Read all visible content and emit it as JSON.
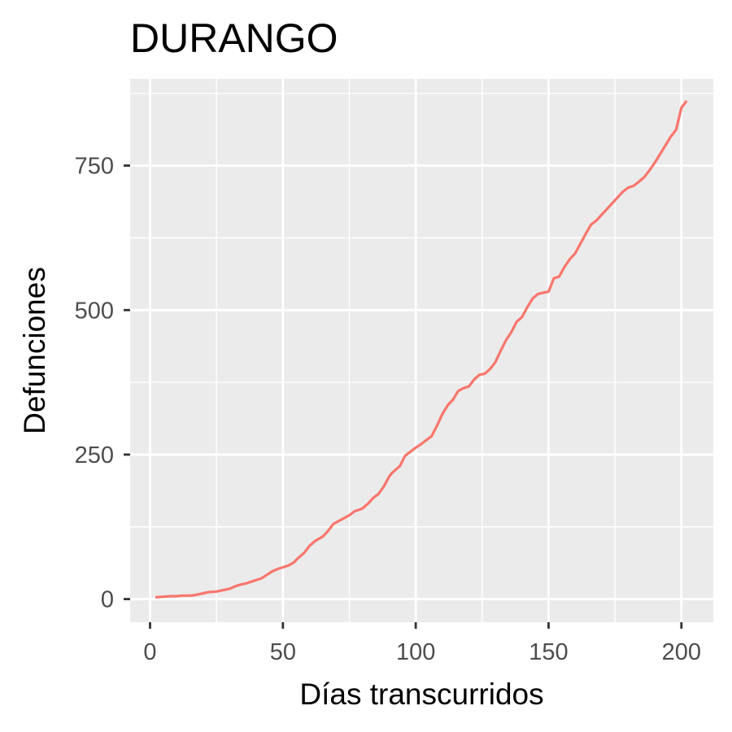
{
  "chart_data": {
    "type": "line",
    "title": "DURANGO",
    "xlabel": "Días transcurridos",
    "ylabel": "Defunciones",
    "xlim": [
      -7.5,
      212
    ],
    "ylim": [
      -40,
      900
    ],
    "x_ticks": [
      0,
      50,
      100,
      150,
      200
    ],
    "y_ticks": [
      0,
      250,
      500,
      750
    ],
    "grid": true,
    "legend": "none",
    "colors": {
      "line": "#F8766D",
      "panel": "#EBEBEB",
      "grid": "#FFFFFF",
      "tick": "#333333"
    },
    "series": [
      {
        "x": [
          2,
          5,
          8,
          10,
          12,
          15,
          17,
          18,
          20,
          22,
          25,
          27,
          30,
          32,
          34,
          36,
          38,
          40,
          42,
          44,
          46,
          48,
          50,
          52,
          54,
          56,
          58,
          60,
          62,
          63,
          65,
          67,
          69,
          71,
          73,
          75,
          77,
          79,
          80,
          82,
          84,
          86,
          88,
          90,
          91,
          92,
          94,
          96,
          98,
          100,
          102,
          104,
          106,
          108,
          110,
          112,
          114,
          116,
          118,
          120,
          122,
          124,
          126,
          128,
          130,
          132,
          134,
          136,
          138,
          140,
          142,
          144,
          146,
          148,
          150,
          152,
          154,
          156,
          158,
          160,
          162,
          164,
          166,
          168,
          170,
          172,
          174,
          176,
          178,
          180,
          182,
          184,
          186,
          188,
          190,
          192,
          194,
          196,
          198,
          200,
          202
        ],
        "values": [
          3,
          4,
          5,
          5,
          6,
          6,
          7,
          8,
          10,
          12,
          13,
          15,
          18,
          22,
          25,
          27,
          30,
          33,
          36,
          42,
          48,
          52,
          55,
          58,
          63,
          72,
          80,
          92,
          100,
          103,
          108,
          118,
          130,
          135,
          140,
          145,
          152,
          155,
          157,
          165,
          175,
          182,
          195,
          212,
          218,
          222,
          230,
          248,
          255,
          262,
          268,
          275,
          282,
          300,
          320,
          335,
          345,
          360,
          365,
          368,
          380,
          388,
          390,
          398,
          410,
          430,
          448,
          462,
          480,
          488,
          505,
          520,
          528,
          530,
          532,
          555,
          558,
          575,
          588,
          598,
          615,
          632,
          648,
          655,
          665,
          675,
          685,
          695,
          705,
          712,
          715,
          722,
          730,
          742,
          755,
          770,
          785,
          800,
          812,
          850,
          862
        ]
      }
    ]
  }
}
